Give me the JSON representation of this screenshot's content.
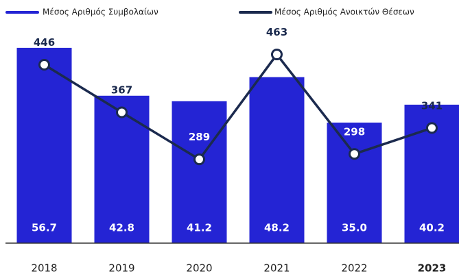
{
  "chart_data": {
    "type": "bar_line",
    "categories": [
      "2018",
      "2019",
      "2020",
      "2021",
      "2022",
      "2023"
    ],
    "highlight_index": 5,
    "highlight_color": "#2424d4",
    "ylim": [
      0,
      70
    ],
    "y2lim": [
      150,
      550
    ],
    "legend": "top",
    "series": [
      {
        "name": "Μέσος Αριθμός Συμβολαίων",
        "type": "bar",
        "color": "#2424d4",
        "values": [
          56.7,
          42.8,
          41.2,
          48.2,
          35.0,
          40.2
        ],
        "value_labels": [
          "56.7",
          "42.8",
          "41.2",
          "48.2",
          "35.0",
          "40.2"
        ]
      },
      {
        "name": "Μέσος Αριθμός Ανοικτών Θέσεων",
        "type": "line",
        "axis": "y2",
        "color": "#1b2a4e",
        "values": [
          446,
          367,
          289,
          463,
          298,
          341
        ]
      }
    ]
  }
}
